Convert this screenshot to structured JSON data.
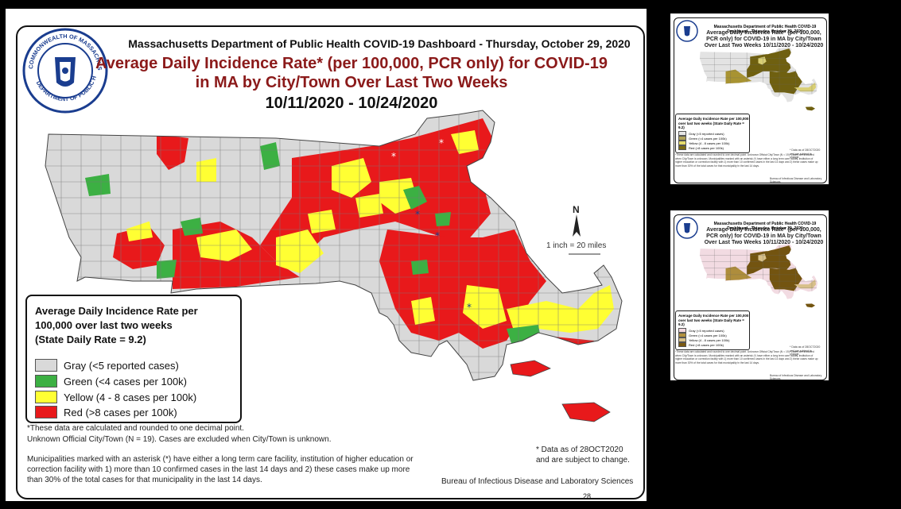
{
  "main": {
    "header_line": "Massachusetts Department of Public Health COVID-19 Dashboard - Thursday, October 29, 2020",
    "title_line1": "Average Daily Incidence Rate* (per 100,000, PCR only) for COVID-19",
    "title_line2": "in MA by City/Town Over Last Two Weeks",
    "date_range": "10/11/2020 - 10/24/2020",
    "seal_top_text": "COMMONWEALTH OF MASSACHUSETTS",
    "seal_bottom_text": "DEPARTMENT OF PUBLIC HEALTH",
    "north_label": "N",
    "scale_text": "1 inch = 20 miles",
    "legend": {
      "title": "Average Daily Incidence Rate per 100,000 over last two weeks",
      "state_rate": "(State Daily Rate = 9.2)",
      "items": [
        {
          "label": "Gray (<5 reported cases)",
          "color": "#d9d9d9"
        },
        {
          "label": "Green (<4 cases per 100k)",
          "color": "#3cb043"
        },
        {
          "label": "Yellow (4 - 8 cases per 100k)",
          "color": "#ffff33"
        },
        {
          "label": "Red (>8 cases per 100k)",
          "color": "#e8191b"
        }
      ]
    },
    "note1": "*These data are calculated and rounded to one decimal point.",
    "note2": "Unknown Official City/Town (N = 19). Cases are excluded when City/Town is unknown.",
    "note3": "Municipalities marked with an asterisk (*) have either a long term care facility, institution of higher education or correction facility with 1) more than 10 confirmed cases in the last 14 days and 2) these cases make up more than 30% of the total cases for that municipality in the last 14 days.",
    "data_note": "* Data as of  28OCT2020 and are subject to change.",
    "bureau": "Bureau of Infectious Disease and Laboratory Sciences",
    "page_number": "28"
  },
  "thumb1": {
    "header_line": "Massachusetts Department of Public Health COVID-19 Dashboard - Thursday, October 29, 2020",
    "title": "Average Daily Incidence Rate* (per 100,000, PCR only) for COVID-19 in MA by City/Town Over Last Two Weeks 10/11/2020 - 10/24/2020",
    "legend_title": "Average Daily Incidence Rate per 100,000 over last two weeks (State Daily Rate = 9.2)",
    "items": [
      {
        "label": "Gray (<5 reported cases)",
        "color": "#e6e6e6"
      },
      {
        "label": "Green (<4 cases per 100k)",
        "color": "#b0a35a"
      },
      {
        "label": "Yellow (4 - 8 cases per 100k)",
        "color": "#e6dc6c"
      },
      {
        "label": "Red (>8 cases per 100k)",
        "color": "#7a6a12"
      }
    ],
    "colors": {
      "gray": "#e3e3e3",
      "light": "#d9cf74",
      "mid": "#a89332",
      "dark": "#6f6010"
    },
    "notes": "*These data are calculated and rounded to one decimal point. Unknown Official City/Town (N = 19). Cases are excluded when City/Town is unknown. Municipalities marked with an asterisk (*) have either a long term care facility, institution of higher education or correction facility with 1) more than 10 confirmed cases in the last 14 days and 2) these cases make up more than 30% of the total cases for that municipality in the last 14 days.",
    "data_note": "* Data as of 28OCT2020 and are subject to change.",
    "bureau": "Bureau of Infectious Disease and Laboratory Sciences"
  },
  "thumb2": {
    "header_line": "Massachusetts Department of Public Health COVID-19 Dashboard - Thursday, October 29, 2020",
    "title": "Average Daily Incidence Rate* (per 100,000, PCR only) for COVID-19 in MA by City/Town Over Last Two Weeks 10/11/2020 - 10/24/2020",
    "legend_title": "Average Daily Incidence Rate per 100,000 over last two weeks (State Daily Rate = 9.2)",
    "items": [
      {
        "label": "Gray (<5 reported cases)",
        "color": "#f4d9e0"
      },
      {
        "label": "Green (<4 cases per 100k)",
        "color": "#b2913e"
      },
      {
        "label": "Yellow (4 - 8 cases per 100k)",
        "color": "#d9c188"
      },
      {
        "label": "Red (>8 cases per 100k)",
        "color": "#7b5a12"
      }
    ],
    "colors": {
      "gray": "#f2dbe2",
      "light": "#d8c08a",
      "mid": "#ae8d3c",
      "dark": "#735410"
    },
    "notes": "*These data are calculated and rounded to one decimal point. Unknown Official City/Town (N = 19). Cases are excluded when City/Town is unknown. Municipalities marked with an asterisk (*) have either a long term care facility, institution of higher education or correction facility with 1) more than 10 confirmed cases in the last 14 days and 2) these cases make up more than 30% of the total cases for that municipality in the last 14 days.",
    "data_note": "* Data as of 28OCT2020 and are subject to change.",
    "bureau": "Bureau of Infectious Disease and Laboratory Sciences"
  }
}
